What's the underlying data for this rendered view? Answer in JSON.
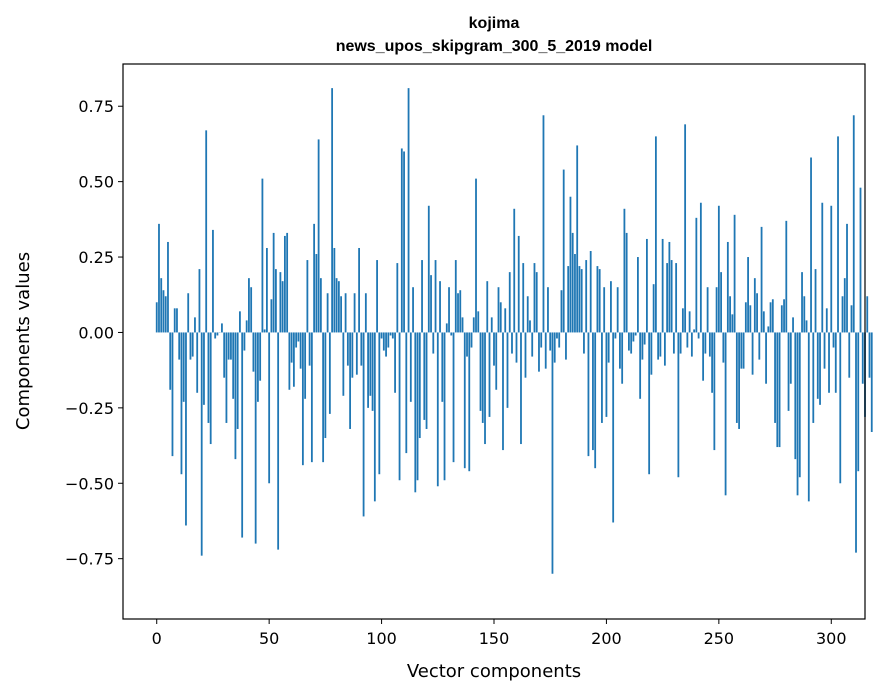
{
  "chart_data": {
    "type": "bar",
    "title": "kojima",
    "subtitle": "news_upos_skipgram_300_5_2019 model",
    "xlabel": "Vector components",
    "ylabel": "Components values",
    "xlim": [
      -15,
      315
    ],
    "ylim": [
      -0.95,
      0.89
    ],
    "xticks": [
      0,
      50,
      100,
      150,
      200,
      250,
      300
    ],
    "xtick_labels": [
      "0",
      "50",
      "100",
      "150",
      "200",
      "250",
      "300"
    ],
    "yticks": [
      -0.75,
      -0.5,
      -0.25,
      0.0,
      0.25,
      0.5,
      0.75
    ],
    "ytick_labels": [
      "−0.75",
      "−0.50",
      "−0.25",
      "0.00",
      "0.25",
      "0.50",
      "0.75"
    ],
    "grid": false,
    "bar_color": "#1f77b4",
    "x_start": 0,
    "values": [
      0.1,
      0.36,
      0.18,
      0.14,
      0.12,
      0.3,
      -0.19,
      -0.41,
      0.08,
      0.08,
      -0.09,
      -0.47,
      -0.23,
      -0.64,
      0.13,
      -0.09,
      -0.08,
      0.05,
      -0.2,
      0.21,
      -0.74,
      -0.24,
      0.67,
      -0.3,
      -0.37,
      0.34,
      -0.02,
      -0.01,
      0.0,
      0.03,
      -0.15,
      -0.3,
      -0.09,
      -0.09,
      -0.22,
      -0.42,
      -0.32,
      0.07,
      -0.68,
      -0.06,
      0.04,
      0.18,
      0.15,
      -0.13,
      -0.7,
      -0.23,
      -0.16,
      0.51,
      0.01,
      0.28,
      -0.5,
      0.11,
      0.33,
      0.21,
      -0.72,
      0.2,
      0.17,
      0.32,
      0.33,
      -0.19,
      -0.1,
      -0.18,
      -0.05,
      -0.03,
      -0.12,
      -0.44,
      -0.22,
      0.24,
      -0.11,
      -0.43,
      0.36,
      0.26,
      0.64,
      0.18,
      -0.43,
      -0.35,
      0.13,
      -0.27,
      0.81,
      0.28,
      0.18,
      0.17,
      0.12,
      -0.21,
      0.13,
      -0.11,
      -0.32,
      -0.15,
      0.13,
      -0.14,
      0.28,
      -0.11,
      -0.61,
      0.13,
      -0.25,
      -0.21,
      -0.26,
      -0.56,
      0.24,
      -0.47,
      -0.02,
      -0.06,
      -0.08,
      -0.05,
      -0.01,
      -0.02,
      -0.2,
      0.23,
      -0.49,
      0.61,
      0.6,
      -0.4,
      0.81,
      -0.23,
      0.15,
      -0.53,
      -0.49,
      -0.35,
      0.24,
      -0.29,
      -0.32,
      0.42,
      0.19,
      -0.07,
      0.24,
      -0.51,
      0.17,
      -0.23,
      -0.49,
      0.03,
      0.15,
      -0.01,
      -0.43,
      0.24,
      0.13,
      0.14,
      0.05,
      -0.45,
      -0.08,
      -0.46,
      -0.05,
      0.05,
      0.51,
      0.07,
      -0.26,
      -0.3,
      -0.37,
      0.17,
      -0.28,
      0.05,
      -0.11,
      -0.19,
      0.15,
      0.1,
      -0.39,
      0.08,
      -0.25,
      0.2,
      -0.07,
      0.41,
      -0.1,
      0.32,
      -0.37,
      0.23,
      -0.15,
      0.12,
      0.04,
      -0.08,
      0.23,
      0.2,
      -0.13,
      -0.05,
      0.72,
      -0.12,
      0.15,
      -0.06,
      -0.8,
      -0.1,
      -0.02,
      -0.05,
      0.14,
      0.54,
      -0.09,
      0.22,
      0.45,
      0.33,
      0.26,
      0.62,
      0.22,
      0.21,
      -0.07,
      0.24,
      -0.41,
      0.27,
      -0.39,
      -0.45,
      0.22,
      0.21,
      -0.3,
      0.15,
      -0.28,
      -0.1,
      0.17,
      -0.63,
      -0.02,
      0.15,
      -0.12,
      -0.17,
      0.41,
      0.33,
      -0.06,
      -0.07,
      -0.03,
      -0.01,
      0.25,
      -0.22,
      -0.09,
      -0.04,
      0.31,
      -0.47,
      -0.14,
      0.16,
      0.65,
      -0.09,
      -0.08,
      0.31,
      -0.11,
      0.23,
      0.3,
      0.24,
      -0.07,
      0.23,
      -0.48,
      -0.07,
      0.08,
      0.69,
      -0.05,
      0.07,
      -0.08,
      0.01,
      0.38,
      -0.02,
      0.43,
      -0.16,
      -0.07,
      0.15,
      -0.08,
      -0.2,
      -0.39,
      0.15,
      0.42,
      0.2,
      -0.1,
      -0.54,
      0.3,
      0.12,
      0.06,
      0.39,
      -0.3,
      -0.32,
      -0.12,
      -0.12,
      0.1,
      0.25,
      0.09,
      -0.14,
      0.18,
      0.13,
      -0.09,
      0.35,
      0.07,
      -0.17,
      0.02,
      0.1,
      0.11,
      -0.3,
      -0.38,
      -0.38,
      0.09,
      0.11,
      0.37,
      -0.26,
      -0.17,
      0.05,
      -0.42,
      -0.54,
      -0.48,
      0.2,
      0.12,
      0.04,
      -0.56,
      0.58,
      -0.3,
      0.21,
      -0.22,
      -0.24,
      0.43,
      -0.12,
      0.08,
      -0.2,
      0.42,
      -0.05,
      -0.2,
      0.65,
      -0.5,
      0.12,
      0.18,
      0.36,
      -0.15,
      0.09,
      0.72,
      -0.73,
      -0.46,
      0.48,
      -0.17,
      -0.28,
      0.12,
      -0.15,
      -0.33
    ]
  }
}
